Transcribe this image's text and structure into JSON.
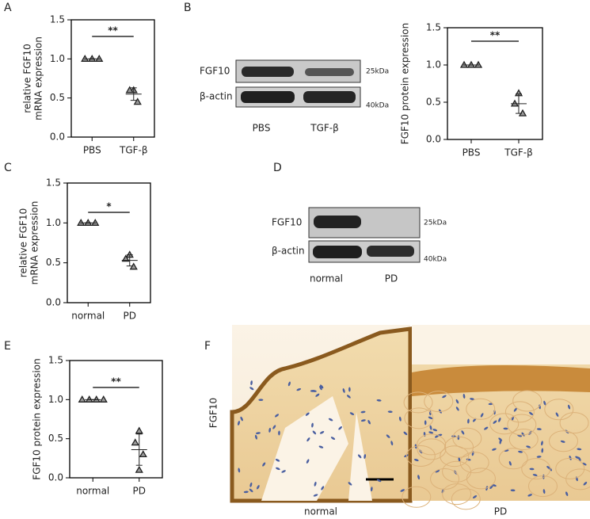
{
  "chart_data": [
    {
      "type": "scatter",
      "panel": "A",
      "y_label": [
        "relative FGF10",
        "mRNA expression"
      ],
      "categories": [
        "PBS",
        "TGF-β"
      ],
      "values": [
        [
          1.0,
          1.0,
          1.0
        ],
        [
          0.6,
          0.6,
          0.45
        ]
      ],
      "means": [
        1.0,
        0.55
      ],
      "errors": [
        0,
        0.08
      ],
      "significance": "**",
      "ylim": [
        0,
        1.5
      ],
      "yticks": [
        {
          "value": 0,
          "label": "0.0"
        },
        {
          "value": 0.5,
          "label": "0.5"
        },
        {
          "value": 1,
          "label": "1.0"
        },
        {
          "value": 1.5,
          "label": "1.5"
        }
      ],
      "color": "#222222"
    },
    {
      "type": "scatter",
      "panel": "",
      "y_label": [
        "FGF10 protein expression"
      ],
      "categories": [
        "PBS",
        "TGF-β"
      ],
      "values": [
        [
          1.0,
          1.0,
          1.0
        ],
        [
          0.62,
          0.48,
          0.35
        ]
      ],
      "means": [
        1.0,
        0.48
      ],
      "errors": [
        0,
        0.13
      ],
      "significance": "**",
      "ylim": [
        0,
        1.5
      ],
      "yticks": [
        {
          "value": 0,
          "label": "0.0"
        },
        {
          "value": 0.5,
          "label": "0.5"
        },
        {
          "value": 1,
          "label": "1.0"
        },
        {
          "value": 1.5,
          "label": "1.5"
        }
      ],
      "color": "#222222"
    },
    {
      "type": "scatter",
      "panel": "C",
      "y_label": [
        "relative FGF10",
        "mRNA expression"
      ],
      "categories": [
        "normal",
        "PD"
      ],
      "values": [
        [
          1.0,
          1.0,
          1.0
        ],
        [
          0.6,
          0.55,
          0.45
        ]
      ],
      "means": [
        1.0,
        0.53
      ],
      "errors": [
        0,
        0.07
      ],
      "significance": "*",
      "ylim": [
        0,
        1.5
      ],
      "yticks": [
        {
          "value": 0,
          "label": "0.0"
        },
        {
          "value": 0.5,
          "label": "0.5"
        },
        {
          "value": 1,
          "label": "1.0"
        },
        {
          "value": 1.5,
          "label": "1.5"
        }
      ],
      "color": "#222222"
    },
    {
      "type": "scatter",
      "panel": "E",
      "y_label": [
        "FGF10 protein expression"
      ],
      "categories": [
        "normal",
        "PD"
      ],
      "values": [
        [
          1.0,
          1.0,
          1.0,
          1.0
        ],
        [
          0.6,
          0.45,
          0.3,
          0.1
        ]
      ],
      "means": [
        1.0,
        0.36
      ],
      "errors": [
        0,
        0.2
      ],
      "significance": "**",
      "ylim": [
        0,
        1.5
      ],
      "yticks": [
        {
          "value": 0,
          "label": "0.0"
        },
        {
          "value": 0.5,
          "label": "0.5"
        },
        {
          "value": 1,
          "label": "1.0"
        },
        {
          "value": 1.5,
          "label": "1.5"
        }
      ],
      "color": "#222222"
    }
  ],
  "blots": [
    {
      "panel": "B",
      "rows": [
        "FGF10",
        "β-actin"
      ],
      "sizes": [
        "25kDa",
        "40kDa"
      ],
      "lanes": [
        "PBS",
        "TGF-β"
      ]
    },
    {
      "panel": "D",
      "rows": [
        "FGF10",
        "β-actin"
      ],
      "sizes": [
        "25kDa",
        "40kDa"
      ],
      "lanes": [
        "normal",
        "PD"
      ]
    }
  ],
  "histology": {
    "panel": "F",
    "row_label": "FGF10",
    "columns": [
      "normal",
      "PD"
    ]
  }
}
